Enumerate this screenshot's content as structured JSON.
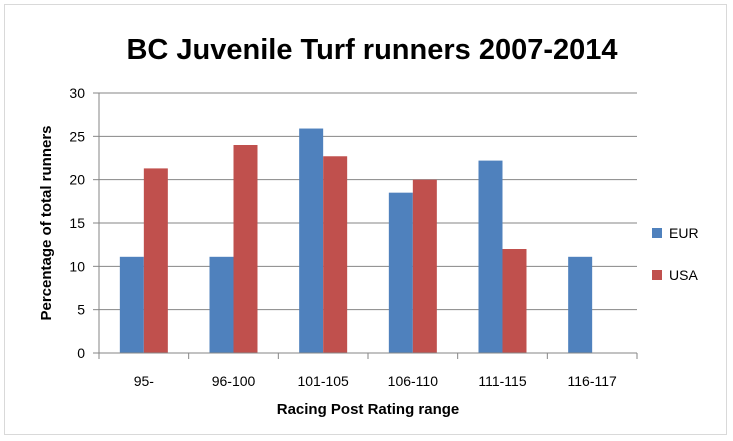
{
  "chart_data": {
    "type": "bar",
    "title": "BC Juvenile Turf runners 2007-2014",
    "xlabel": "Racing Post Rating range",
    "ylabel": "Percentage of total runners",
    "categories": [
      "95-",
      "96-100",
      "101-105",
      "106-110",
      "111-115",
      "116-117"
    ],
    "series": [
      {
        "name": "EUR",
        "color": "#4f81bd",
        "values": [
          11.1,
          11.1,
          25.9,
          18.5,
          22.2,
          11.1
        ]
      },
      {
        "name": "USA",
        "color": "#c0504d",
        "values": [
          21.3,
          24.0,
          22.7,
          20.0,
          12.0,
          0
        ]
      }
    ],
    "ylim": [
      0,
      30
    ],
    "yticks": [
      0,
      5,
      10,
      15,
      20,
      25,
      30
    ],
    "grid": true,
    "legend": "right"
  }
}
